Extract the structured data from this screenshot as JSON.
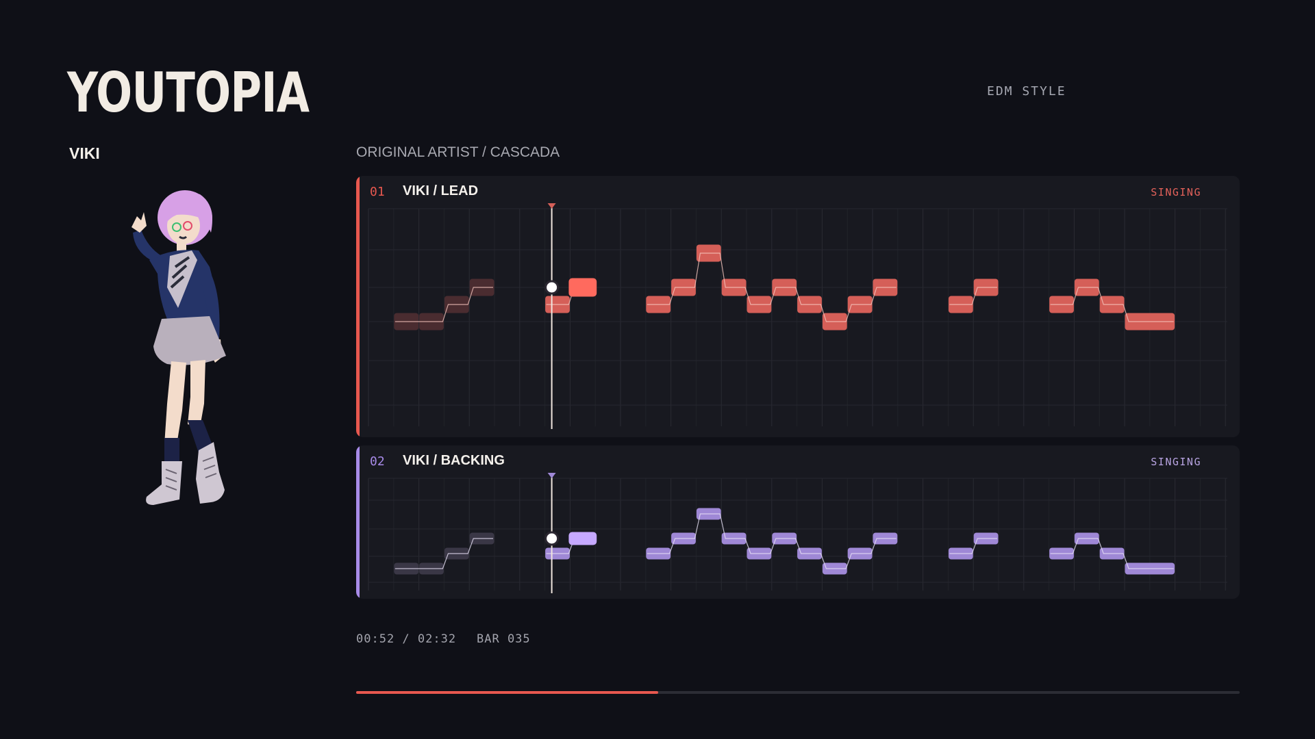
{
  "song": {
    "title": "YOUTOPIA",
    "style_label": "EDM STYLE",
    "original_artist_label": "ORIGINAL ARTIST / CASCADA"
  },
  "singer": {
    "name": "VIKI"
  },
  "playhead_bar": 35,
  "tracks": [
    {
      "number": "01",
      "name": "VIKI / LEAD",
      "status": "SINGING",
      "color": "#d55f58",
      "dim_color": "#4a2c30",
      "line_color": "#f6c7bf",
      "notes": [
        {
          "bar": 29,
          "len": 1,
          "pitch": 4
        },
        {
          "bar": 30,
          "len": 1,
          "pitch": 4
        },
        {
          "bar": 31,
          "len": 1,
          "pitch": 5
        },
        {
          "bar": 32,
          "len": 1,
          "pitch": 6
        },
        {
          "bar": 35,
          "len": 1,
          "pitch": 5
        },
        {
          "bar": 36,
          "len": 1,
          "pitch": 6
        },
        {
          "bar": 39,
          "len": 1,
          "pitch": 5
        },
        {
          "bar": 40,
          "len": 1,
          "pitch": 6
        },
        {
          "bar": 41,
          "len": 1,
          "pitch": 8
        },
        {
          "bar": 42,
          "len": 1,
          "pitch": 6
        },
        {
          "bar": 43,
          "len": 1,
          "pitch": 5
        },
        {
          "bar": 44,
          "len": 1,
          "pitch": 6
        },
        {
          "bar": 45,
          "len": 1,
          "pitch": 5
        },
        {
          "bar": 46,
          "len": 1,
          "pitch": 4
        },
        {
          "bar": 47,
          "len": 1,
          "pitch": 5
        },
        {
          "bar": 48,
          "len": 1,
          "pitch": 6
        },
        {
          "bar": 51,
          "len": 1,
          "pitch": 5
        },
        {
          "bar": 52,
          "len": 1,
          "pitch": 6
        },
        {
          "bar": 55,
          "len": 1,
          "pitch": 5
        },
        {
          "bar": 56,
          "len": 1,
          "pitch": 6
        },
        {
          "bar": 57,
          "len": 1,
          "pitch": 5
        },
        {
          "bar": 58,
          "len": 2,
          "pitch": 4
        }
      ]
    },
    {
      "number": "02",
      "name": "VIKI / BACKING",
      "status": "SINGING",
      "color": "#9f88d6",
      "dim_color": "#3a3746",
      "line_color": "#e8e2f6",
      "notes": [
        {
          "bar": 29,
          "len": 1,
          "pitch": 4
        },
        {
          "bar": 30,
          "len": 1,
          "pitch": 4
        },
        {
          "bar": 31,
          "len": 1,
          "pitch": 5
        },
        {
          "bar": 32,
          "len": 1,
          "pitch": 6
        },
        {
          "bar": 35,
          "len": 1,
          "pitch": 5
        },
        {
          "bar": 36,
          "len": 1,
          "pitch": 6
        },
        {
          "bar": 39,
          "len": 1,
          "pitch": 5
        },
        {
          "bar": 40,
          "len": 1,
          "pitch": 6
        },
        {
          "bar": 41,
          "len": 1,
          "pitch": 7
        },
        {
          "bar": 42,
          "len": 1,
          "pitch": 6
        },
        {
          "bar": 43,
          "len": 1,
          "pitch": 5
        },
        {
          "bar": 44,
          "len": 1,
          "pitch": 6
        },
        {
          "bar": 45,
          "len": 1,
          "pitch": 5
        },
        {
          "bar": 46,
          "len": 1,
          "pitch": 4
        },
        {
          "bar": 47,
          "len": 1,
          "pitch": 5
        },
        {
          "bar": 48,
          "len": 1,
          "pitch": 6
        },
        {
          "bar": 51,
          "len": 1,
          "pitch": 5
        },
        {
          "bar": 52,
          "len": 1,
          "pitch": 6
        },
        {
          "bar": 55,
          "len": 1,
          "pitch": 5
        },
        {
          "bar": 56,
          "len": 1,
          "pitch": 6
        },
        {
          "bar": 57,
          "len": 1,
          "pitch": 5
        },
        {
          "bar": 58,
          "len": 2,
          "pitch": 4
        }
      ]
    }
  ],
  "transport": {
    "time_readout": "00:52 / 02:32",
    "bar_readout": "BAR 035",
    "progress_fraction": 0.342
  }
}
